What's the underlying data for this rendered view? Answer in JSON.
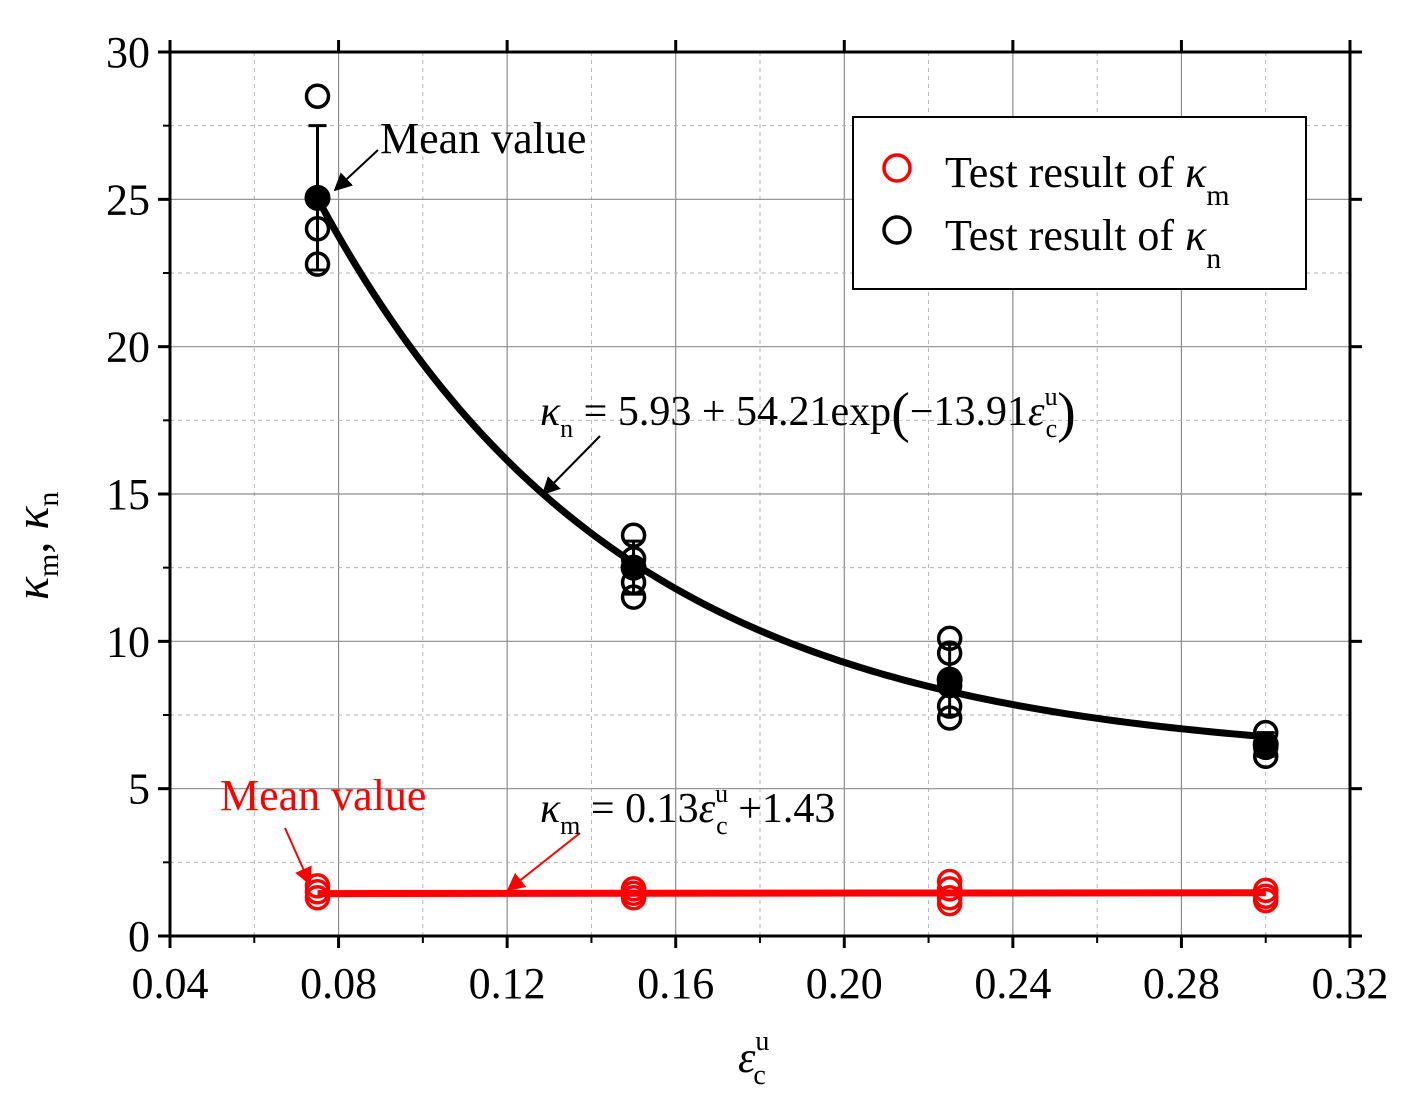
{
  "chart_data": {
    "type": "scatter",
    "xlabel": {
      "main": "ε",
      "sup": "u",
      "sub": "c"
    },
    "ylabel": {
      "k1": "κ",
      "s1": "m",
      "sep": ", ",
      "k2": "κ",
      "s2": "n"
    },
    "xlim": [
      0.04,
      0.32
    ],
    "ylim": [
      0,
      30
    ],
    "xticks": [
      "0.04",
      "0.08",
      "0.12",
      "0.16",
      "0.20",
      "0.24",
      "0.28",
      "0.32"
    ],
    "xtick_values": [
      0.04,
      0.08,
      0.12,
      0.16,
      0.2,
      0.24,
      0.28,
      0.32
    ],
    "yticks": [
      "0",
      "5",
      "10",
      "15",
      "20",
      "25",
      "30"
    ],
    "ytick_values": [
      0,
      5,
      10,
      15,
      20,
      25,
      30
    ],
    "grid": true,
    "legend": {
      "position": "top-right",
      "entries": [
        {
          "label": "Test result of ",
          "symbol": "κ",
          "sub": "m",
          "color": "#ff0000"
        },
        {
          "label": "Test result of ",
          "symbol": "κ",
          "sub": "n",
          "color": "#000000"
        }
      ]
    },
    "series": [
      {
        "name": "Test result of κn",
        "color": "#000000",
        "x": [
          0.075,
          0.075,
          0.075,
          0.15,
          0.15,
          0.15,
          0.15,
          0.15,
          0.225,
          0.225,
          0.225,
          0.225,
          0.225,
          0.3,
          0.3,
          0.3
        ],
        "y": [
          28.5,
          24.0,
          22.8,
          13.6,
          12.8,
          12.0,
          11.5,
          12.5,
          10.1,
          9.6,
          7.8,
          7.4,
          8.5,
          6.9,
          6.4,
          6.1
        ]
      },
      {
        "name": "Mean value κn",
        "color": "#000000",
        "filled": true,
        "x": [
          0.075,
          0.15,
          0.225,
          0.3
        ],
        "y": [
          25.05,
          12.5,
          8.7,
          6.5
        ],
        "err": [
          2.45,
          0.9,
          1.2,
          0.4
        ]
      },
      {
        "name": "Test result of κm",
        "color": "#ff0000",
        "x": [
          0.075,
          0.075,
          0.075,
          0.15,
          0.15,
          0.15,
          0.225,
          0.225,
          0.225,
          0.225,
          0.3,
          0.3,
          0.3
        ],
        "y": [
          1.7,
          1.5,
          1.3,
          1.6,
          1.45,
          1.3,
          1.85,
          1.6,
          1.3,
          1.1,
          1.55,
          1.35,
          1.2
        ]
      }
    ],
    "fits": [
      {
        "name": "κn fit",
        "color": "#000000",
        "formula": {
          "a": 5.93,
          "b": 54.21,
          "c": -13.91
        },
        "x_range": [
          0.075,
          0.3
        ],
        "label": {
          "k": "κ",
          "ksub": "n",
          "rhs": " = 5.93 + 54.21exp",
          "open": "(",
          "inner": "−13.91",
          "eps": "ε",
          "epssup": "u",
          "epssub": "c",
          "close": ")"
        }
      },
      {
        "name": "κm fit",
        "color": "#ff0000",
        "formula": {
          "slope": 0.13,
          "intercept": 1.43
        },
        "x_range": [
          0.075,
          0.3
        ],
        "label": {
          "k": "κ",
          "ksub": "m",
          "rhs": " = 0.13",
          "eps": "ε",
          "epssup": "u",
          "epssub": "c",
          "tail": " +1.43"
        }
      }
    ],
    "annotations": [
      {
        "text": "Mean value",
        "color": "#000000",
        "target": [
          0.075,
          25.05
        ]
      },
      {
        "text": "Mean value",
        "color": "#ff0000",
        "target": [
          0.075,
          1.43
        ]
      }
    ]
  }
}
